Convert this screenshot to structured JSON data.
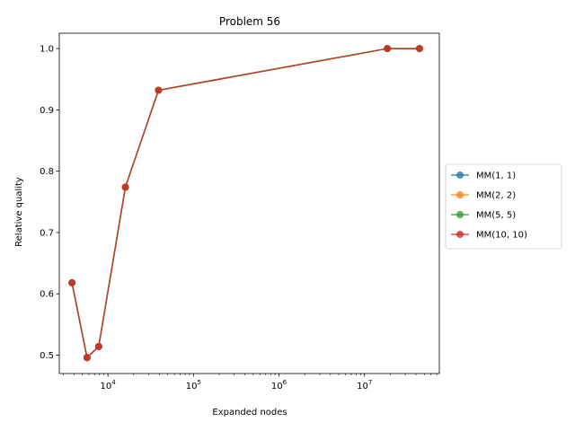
{
  "chart_data": {
    "type": "line",
    "title": "Problem 56",
    "xlabel": "Expanded nodes",
    "ylabel": "Relative quality",
    "xscale": "log",
    "x": [
      3800,
      5700,
      7800,
      16000,
      39000,
      18500000,
      44000000
    ],
    "xlim": [
      2700,
      75000000
    ],
    "ylim": [
      0.47,
      1.025
    ],
    "xticks": [
      {
        "value": 10000,
        "base": "10",
        "exp": "4"
      },
      {
        "value": 100000,
        "base": "10",
        "exp": "5"
      },
      {
        "value": 1000000,
        "base": "10",
        "exp": "6"
      },
      {
        "value": 10000000,
        "base": "10",
        "exp": "7"
      }
    ],
    "yticks": [
      0.5,
      0.6,
      0.7,
      0.8,
      0.9,
      1.0
    ],
    "ytick_labels": [
      "0.5",
      "0.6",
      "0.7",
      "0.8",
      "0.9",
      "1.0"
    ],
    "legend_position": "center-right outside",
    "grid": false,
    "series": [
      {
        "name": "MM(1, 1)",
        "color": "#1f77b4",
        "values": [
          0.618,
          0.496,
          0.514,
          0.774,
          0.932,
          1.0,
          1.0
        ]
      },
      {
        "name": "MM(2, 2)",
        "color": "#ff7f0e",
        "values": [
          0.618,
          0.496,
          0.514,
          0.774,
          0.932,
          1.0,
          1.0
        ]
      },
      {
        "name": "MM(5, 5)",
        "color": "#2ca02c",
        "values": [
          0.618,
          0.496,
          0.514,
          0.774,
          0.932,
          1.0,
          1.0
        ]
      },
      {
        "name": "MM(10, 10)",
        "color": "#d62728",
        "values": [
          0.618,
          0.496,
          0.514,
          0.774,
          0.932,
          1.0,
          1.0
        ]
      }
    ]
  }
}
